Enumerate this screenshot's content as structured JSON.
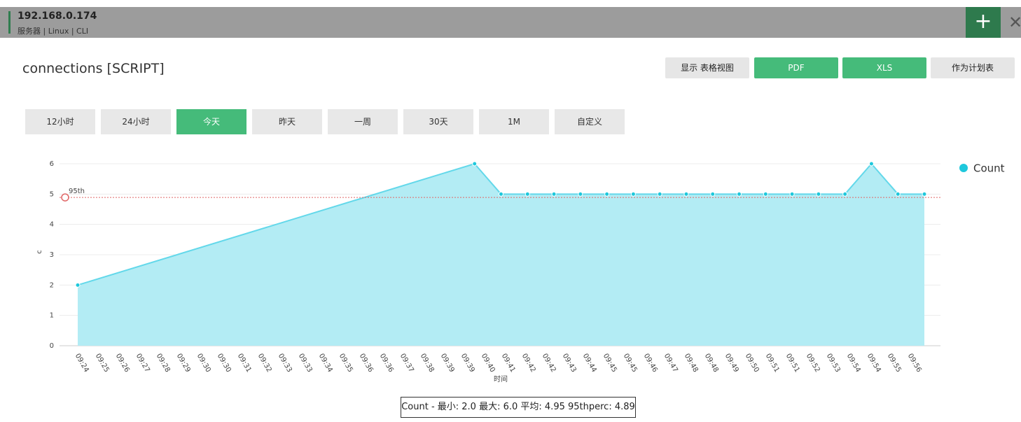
{
  "header": {
    "title": "192.168.0.174",
    "subtitle": "服务器 | Linux | CLI"
  },
  "page_title": "connections [SCRIPT]",
  "actions": [
    "显示 表格视图",
    "PDF",
    "XLS",
    "作为计划表"
  ],
  "ranges": [
    "12小时",
    "24小时",
    "今天",
    "昨天",
    "一周",
    "30天",
    "1M",
    "自定义"
  ],
  "active_range": "今天",
  "chart_data": {
    "type": "area",
    "x_label": "时间",
    "y_label": "c",
    "series": [
      {
        "name": "Count",
        "color": "#1ec8dc",
        "x": [
          "09:24",
          "09:39",
          "09:40",
          "09:41",
          "09:42",
          "09:43",
          "09:44",
          "09:45",
          "09:46",
          "09:47",
          "09:48",
          "09:49",
          "09:50",
          "09:51",
          "09:52",
          "09:53",
          "09:54",
          "09:55",
          "09:56"
        ],
        "values": [
          2,
          6,
          5,
          5,
          5,
          5,
          5,
          5,
          5,
          5,
          5,
          5,
          5,
          5,
          5,
          5,
          6,
          5,
          5
        ]
      }
    ],
    "xlim": [
      "09:24",
      "09:56"
    ],
    "xticks": [
      "09:24",
      "09:25",
      "09:26",
      "09:27",
      "09:28",
      "09:29",
      "09:30",
      "09:30",
      "09:31",
      "09:32",
      "09:33",
      "09:33",
      "09:34",
      "09:35",
      "09:36",
      "09:36",
      "09:37",
      "09:38",
      "09:39",
      "09:39",
      "09:40",
      "09:41",
      "09:42",
      "09:42",
      "09:43",
      "09:44",
      "09:45",
      "09:45",
      "09:46",
      "09:47",
      "09:48",
      "09:48",
      "09:49",
      "09:50",
      "09:51",
      "09:51",
      "09:52",
      "09:53",
      "09:54",
      "09:54",
      "09:55",
      "09:56"
    ],
    "ylim": [
      0,
      6
    ],
    "yticks": [
      0,
      1,
      2,
      3,
      4,
      5,
      6
    ],
    "grid": true,
    "legend": "right",
    "threshold": {
      "label": "95th",
      "value": 4.89,
      "color": "#e06666"
    }
  },
  "summary": "Count - 最小: 2.0 最大: 6.0 平均: 4.95 95thperc: 4.89"
}
